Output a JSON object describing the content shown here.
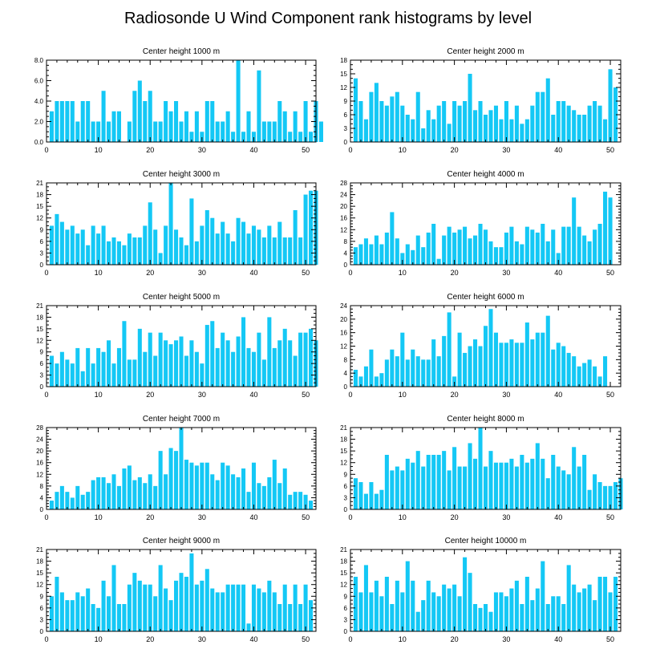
{
  "title": "Radiosonde U Wind Component rank histograms by level",
  "bar_color": "#14c8f5",
  "chart_data": [
    {
      "type": "bar",
      "title": "Center height 1000 m",
      "xlim": [
        0,
        52
      ],
      "ylim": [
        0,
        8
      ],
      "xticks": [
        0,
        10,
        20,
        30,
        40,
        50
      ],
      "yticks": [
        0,
        2,
        4,
        6,
        8
      ],
      "ytick_labels": [
        "0.0",
        "2.0",
        "4.0",
        "6.0",
        "8.0"
      ],
      "values": [
        3,
        4,
        4,
        4,
        4,
        2,
        4,
        4,
        2,
        2,
        5,
        2,
        3,
        3,
        0,
        2,
        5,
        6,
        4,
        5,
        2,
        2,
        4,
        3,
        4,
        2,
        3,
        1,
        3,
        1,
        4,
        4,
        2,
        2,
        3,
        1,
        8,
        1,
        3,
        1,
        7,
        2,
        2,
        2,
        4,
        3,
        1,
        3,
        1,
        4,
        1,
        4,
        2
      ]
    },
    {
      "type": "bar",
      "title": "Center height 2000 m",
      "xlim": [
        0,
        52
      ],
      "ylim": [
        0,
        18
      ],
      "xticks": [
        0,
        10,
        20,
        30,
        40,
        50
      ],
      "yticks": [
        0,
        3,
        6,
        9,
        12,
        15,
        18
      ],
      "ytick_labels": [
        "0",
        "3",
        "6",
        "9",
        "12",
        "15",
        "18"
      ],
      "values": [
        14,
        9,
        5,
        11,
        13,
        9,
        8,
        10,
        11,
        8,
        6,
        5,
        11,
        3,
        7,
        5,
        8,
        9,
        4,
        9,
        8,
        9,
        15,
        7,
        9,
        6,
        7,
        8,
        5,
        9,
        5,
        8,
        4,
        5,
        8,
        11,
        11,
        14,
        6,
        9,
        9,
        8,
        7,
        6,
        6,
        8,
        9,
        8,
        5,
        16,
        12
      ]
    },
    {
      "type": "bar",
      "title": "Center height 3000 m",
      "xlim": [
        0,
        52
      ],
      "ylim": [
        0,
        21
      ],
      "xticks": [
        0,
        10,
        20,
        30,
        40,
        50
      ],
      "yticks": [
        0,
        3,
        6,
        9,
        12,
        15,
        18,
        21
      ],
      "ytick_labels": [
        "0",
        "3",
        "6",
        "9",
        "12",
        "15",
        "18",
        "21"
      ],
      "values": [
        10,
        13,
        11,
        9,
        10,
        8,
        9,
        5,
        10,
        8,
        10,
        6,
        7,
        6,
        5,
        8,
        7,
        7,
        10,
        16,
        9,
        3,
        10,
        21,
        9,
        7,
        5,
        17,
        6,
        10,
        14,
        12,
        8,
        11,
        8,
        6,
        12,
        11,
        8,
        10,
        9,
        7,
        10,
        7,
        11,
        7,
        7,
        14,
        7,
        18,
        19,
        19
      ]
    },
    {
      "type": "bar",
      "title": "Center height 4000 m",
      "xlim": [
        0,
        52
      ],
      "ylim": [
        0,
        28
      ],
      "xticks": [
        0,
        10,
        20,
        30,
        40,
        50
      ],
      "yticks": [
        0,
        4,
        8,
        12,
        16,
        20,
        24,
        28
      ],
      "ytick_labels": [
        "0",
        "4",
        "8",
        "12",
        "16",
        "20",
        "24",
        "28"
      ],
      "values": [
        6,
        7,
        9,
        7,
        10,
        7,
        11,
        18,
        9,
        4,
        7,
        5,
        10,
        6,
        11,
        14,
        2,
        10,
        13,
        11,
        12,
        13,
        9,
        10,
        14,
        12,
        8,
        6,
        6,
        11,
        13,
        8,
        7,
        13,
        12,
        11,
        14,
        8,
        12,
        4,
        13,
        13,
        23,
        13,
        10,
        8,
        12,
        14,
        25,
        23
      ]
    },
    {
      "type": "bar",
      "title": "Center height 5000 m",
      "xlim": [
        0,
        52
      ],
      "ylim": [
        0,
        21
      ],
      "xticks": [
        0,
        10,
        20,
        30,
        40,
        50
      ],
      "yticks": [
        0,
        3,
        6,
        9,
        12,
        15,
        18,
        21
      ],
      "ytick_labels": [
        "0",
        "3",
        "6",
        "9",
        "12",
        "15",
        "18",
        "21"
      ],
      "values": [
        8,
        6,
        9,
        7,
        6,
        10,
        4,
        10,
        6,
        10,
        9,
        12,
        6,
        10,
        17,
        7,
        7,
        15,
        9,
        14,
        8,
        14,
        12,
        11,
        12,
        13,
        8,
        12,
        9,
        6,
        16,
        17,
        10,
        14,
        12,
        9,
        13,
        18,
        10,
        9,
        14,
        7,
        18,
        10,
        12,
        15,
        12,
        8,
        14,
        14,
        15,
        12
      ]
    },
    {
      "type": "bar",
      "title": "Center height 6000 m",
      "xlim": [
        0,
        52
      ],
      "ylim": [
        0,
        24
      ],
      "xticks": [
        0,
        10,
        20,
        30,
        40,
        50
      ],
      "yticks": [
        0,
        4,
        8,
        12,
        16,
        20,
        24
      ],
      "ytick_labels": [
        "0",
        "4",
        "8",
        "12",
        "16",
        "20",
        "24"
      ],
      "values": [
        5,
        3,
        6,
        11,
        3,
        4,
        8,
        11,
        9,
        16,
        8,
        11,
        9,
        8,
        8,
        14,
        9,
        15,
        22,
        3,
        16,
        10,
        12,
        14,
        12,
        18,
        23,
        16,
        13,
        13,
        14,
        13,
        13,
        19,
        14,
        16,
        16,
        21,
        11,
        13,
        12,
        10,
        9,
        6,
        7,
        8,
        6,
        3,
        9
      ]
    },
    {
      "type": "bar",
      "title": "Center height 7000 m",
      "xlim": [
        0,
        52
      ],
      "ylim": [
        0,
        28
      ],
      "xticks": [
        0,
        10,
        20,
        30,
        40,
        50
      ],
      "yticks": [
        0,
        4,
        8,
        12,
        16,
        20,
        24,
        28
      ],
      "ytick_labels": [
        "0",
        "4",
        "8",
        "12",
        "16",
        "20",
        "24",
        "28"
      ],
      "values": [
        3,
        6,
        8,
        6,
        4,
        8,
        5,
        6,
        10,
        11,
        11,
        9,
        12,
        8,
        14,
        15,
        10,
        11,
        9,
        12,
        8,
        20,
        12,
        21,
        20,
        28,
        17,
        16,
        15,
        16,
        16,
        12,
        10,
        16,
        15,
        12,
        11,
        14,
        6,
        16,
        9,
        8,
        11,
        17,
        9,
        14,
        5,
        6,
        6,
        5,
        3
      ]
    },
    {
      "type": "bar",
      "title": "Center height 8000 m",
      "xlim": [
        0,
        52
      ],
      "ylim": [
        0,
        21
      ],
      "xticks": [
        0,
        10,
        20,
        30,
        40,
        50
      ],
      "yticks": [
        0,
        3,
        6,
        9,
        12,
        15,
        18,
        21
      ],
      "ytick_labels": [
        "0",
        "3",
        "6",
        "9",
        "12",
        "15",
        "18",
        "21"
      ],
      "values": [
        8,
        7,
        4,
        7,
        4,
        5,
        14,
        10,
        11,
        10,
        13,
        12,
        15,
        11,
        14,
        14,
        14,
        15,
        10,
        16,
        11,
        11,
        17,
        13,
        21,
        11,
        15,
        12,
        12,
        12,
        13,
        11,
        14,
        12,
        13,
        17,
        13,
        8,
        14,
        11,
        10,
        9,
        16,
        11,
        14,
        5,
        9,
        7,
        6,
        6,
        7,
        8
      ]
    },
    {
      "type": "bar",
      "title": "Center height 9000 m",
      "xlim": [
        0,
        52
      ],
      "ylim": [
        0,
        21
      ],
      "xticks": [
        0,
        10,
        20,
        30,
        40,
        50
      ],
      "yticks": [
        0,
        3,
        6,
        9,
        12,
        15,
        18,
        21
      ],
      "ytick_labels": [
        "0",
        "3",
        "6",
        "9",
        "12",
        "15",
        "18",
        "21"
      ],
      "values": [
        9,
        14,
        10,
        8,
        8,
        10,
        9,
        11,
        7,
        6,
        13,
        9,
        17,
        7,
        7,
        12,
        15,
        13,
        12,
        12,
        9,
        17,
        11,
        8,
        13,
        15,
        14,
        20,
        12,
        13,
        16,
        11,
        10,
        10,
        12,
        12,
        12,
        12,
        2,
        12,
        11,
        10,
        13,
        10,
        7,
        12,
        7,
        12,
        7,
        12,
        8
      ]
    },
    {
      "type": "bar",
      "title": "Center height 10000 m",
      "xlim": [
        0,
        52
      ],
      "ylim": [
        0,
        21
      ],
      "xticks": [
        0,
        10,
        20,
        30,
        40,
        50
      ],
      "yticks": [
        0,
        3,
        6,
        9,
        12,
        15,
        18,
        21
      ],
      "ytick_labels": [
        "0",
        "3",
        "6",
        "9",
        "12",
        "15",
        "18",
        "21"
      ],
      "values": [
        14,
        10,
        17,
        10,
        13,
        9,
        14,
        7,
        13,
        10,
        18,
        13,
        5,
        8,
        13,
        10,
        9,
        12,
        11,
        12,
        9,
        19,
        15,
        7,
        6,
        7,
        5,
        10,
        10,
        9,
        11,
        13,
        7,
        14,
        8,
        11,
        18,
        7,
        9,
        9,
        7,
        17,
        12,
        10,
        11,
        12,
        8,
        14,
        14,
        10,
        14
      ]
    }
  ]
}
